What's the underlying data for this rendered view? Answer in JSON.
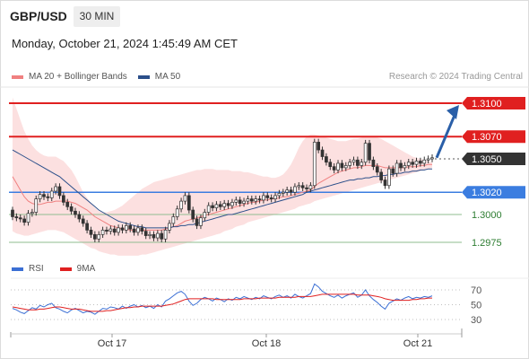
{
  "header": {
    "symbol": "GBP/USD",
    "timeframe": "30 MIN",
    "timestamp": "Monday, October 21, 2024 1:45:49 AM CET",
    "credit": "Research © 2024 Trading Central"
  },
  "legend": {
    "bb_label": "MA 20 + Bollinger Bands",
    "ma50_label": "MA 50",
    "rsi_label": "RSI",
    "ma9_label": "9MA"
  },
  "colors": {
    "bb_line": "#f08080",
    "bb_fill": "#fbd5d5",
    "ma50": "#2b4f8a",
    "resistance": "#e02020",
    "support": "#3b7de0",
    "green_level": "#8fbc8f",
    "last_price": "#333333",
    "arrow": "#2a5fa8",
    "rsi": "#3b6fd4",
    "rsi_ma": "#e02020"
  },
  "chart_data": [
    {
      "type": "candlestick",
      "title": "GBP/USD",
      "x_ticks": [
        "Oct 17",
        "Oct 18",
        "Oct 21"
      ],
      "price_levels": [
        {
          "value": 1.31,
          "label": "1.3100",
          "kind": "resistance"
        },
        {
          "value": 1.307,
          "label": "1.3070",
          "kind": "resistance"
        },
        {
          "value": 1.305,
          "label": "1.3050",
          "kind": "last"
        },
        {
          "value": 1.302,
          "label": "1.3020",
          "kind": "support"
        },
        {
          "value": 1.3,
          "label": "1.3000",
          "kind": "target"
        },
        {
          "value": 1.2975,
          "label": "1.2975",
          "kind": "target"
        }
      ],
      "ylim": [
        1.2958,
        1.3115
      ],
      "forecast_arrow": {
        "from": 1.3051,
        "to": 1.31
      },
      "close": [
        1.2998,
        1.2997,
        1.2996,
        1.2993,
        1.3001,
        1.3002,
        1.3014,
        1.3018,
        1.3016,
        1.3015,
        1.3021,
        1.3025,
        1.3017,
        1.3011,
        1.3007,
        1.3003,
        1.3,
        1.2996,
        1.2992,
        1.2986,
        1.2982,
        1.2978,
        1.2982,
        1.2986,
        1.2985,
        1.2987,
        1.2984,
        1.2988,
        1.2986,
        1.299,
        1.2987,
        1.2984,
        1.2988,
        1.2985,
        1.2981,
        1.2982,
        1.2979,
        1.2983,
        1.2978,
        1.2986,
        1.2992,
        1.2998,
        1.3005,
        1.3012,
        1.3017,
        1.3004,
        1.2996,
        1.299,
        1.2997,
        1.3002,
        1.3008,
        1.3006,
        1.3009,
        1.3007,
        1.301,
        1.3008,
        1.3011,
        1.3013,
        1.301,
        1.3012,
        1.3014,
        1.3012,
        1.3014,
        1.3013,
        1.3017,
        1.3015,
        1.3014,
        1.3017,
        1.3019,
        1.302,
        1.3022,
        1.302,
        1.3025,
        1.3026,
        1.3024,
        1.3023,
        1.3026,
        1.3065,
        1.3058,
        1.3052,
        1.3047,
        1.3043,
        1.304,
        1.3046,
        1.3042,
        1.3044,
        1.3047,
        1.3049,
        1.3044,
        1.3047,
        1.3064,
        1.3049,
        1.3043,
        1.3038,
        1.3031,
        1.3026,
        1.3041,
        1.3037,
        1.3046,
        1.3042,
        1.3044,
        1.3047,
        1.3045,
        1.3048,
        1.3046,
        1.3049,
        1.305,
        1.3051
      ],
      "ma20": [
        1.3034,
        1.3028,
        1.3022,
        1.3016,
        1.3012,
        1.301,
        1.3009,
        1.3009,
        1.301,
        1.3011,
        1.3011,
        1.3012,
        1.3012,
        1.3012,
        1.3012,
        1.3011,
        1.301,
        1.3008,
        1.3006,
        1.3004,
        1.3001,
        1.2998,
        1.2996,
        1.2994,
        1.2992,
        1.299,
        1.2989,
        1.2988,
        1.2987,
        1.2987,
        1.2986,
        1.2986,
        1.2986,
        1.2986,
        1.2986,
        1.2986,
        1.2986,
        1.2986,
        1.2986,
        1.2987,
        1.2988,
        1.2989,
        1.299,
        1.2992,
        1.2994,
        1.2995,
        1.2996,
        1.2997,
        1.2998,
        1.2999,
        1.3,
        1.3001,
        1.3002,
        1.3003,
        1.3004,
        1.3005,
        1.3006,
        1.3007,
        1.3008,
        1.3009,
        1.301,
        1.3011,
        1.3011,
        1.3012,
        1.3013,
        1.3013,
        1.3014,
        1.3014,
        1.3015,
        1.3016,
        1.3016,
        1.3017,
        1.3018,
        1.3019,
        1.302,
        1.3021,
        1.3022,
        1.3025,
        1.3028,
        1.303,
        1.3032,
        1.3034,
        1.3036,
        1.3038,
        1.3039,
        1.304,
        1.3041,
        1.3042,
        1.3042,
        1.3043,
        1.3044,
        1.3044,
        1.3044,
        1.3044,
        1.3043,
        1.3042,
        1.3042,
        1.3042,
        1.3042,
        1.3042,
        1.3042,
        1.3043,
        1.3043,
        1.3043,
        1.3044,
        1.3044,
        1.3045,
        1.3045
      ],
      "ma50": [
        1.3058,
        1.3056,
        1.3054,
        1.3052,
        1.305,
        1.3048,
        1.3046,
        1.3044,
        1.3042,
        1.304,
        1.3038,
        1.3036,
        1.3034,
        1.3031,
        1.3028,
        1.3025,
        1.3022,
        1.3019,
        1.3016,
        1.3013,
        1.301,
        1.3007,
        1.3004,
        1.3002,
        1.3,
        1.2998,
        1.2996,
        1.2994,
        1.2993,
        1.2992,
        1.2991,
        1.299,
        1.2989,
        1.2989,
        1.2988,
        1.2988,
        1.2988,
        1.2988,
        1.2988,
        1.2988,
        1.2988,
        1.2989,
        1.2989,
        1.299,
        1.299,
        1.2991,
        1.2991,
        1.2992,
        1.2993,
        1.2994,
        1.2995,
        1.2996,
        1.2997,
        1.2998,
        1.2999,
        1.3,
        1.3,
        1.3001,
        1.3002,
        1.3003,
        1.3004,
        1.3005,
        1.3006,
        1.3007,
        1.3008,
        1.3009,
        1.301,
        1.3011,
        1.3012,
        1.3013,
        1.3014,
        1.3015,
        1.3016,
        1.3017,
        1.3018,
        1.302,
        1.3021,
        1.3022,
        1.3023,
        1.3024,
        1.3025,
        1.3026,
        1.3027,
        1.3028,
        1.3029,
        1.303,
        1.3031,
        1.3031,
        1.3032,
        1.3032,
        1.3033,
        1.3033,
        1.3034,
        1.3034,
        1.3035,
        1.3035,
        1.3036,
        1.3036,
        1.3037,
        1.3037,
        1.3038,
        1.3038,
        1.3039,
        1.3039,
        1.304,
        1.304,
        1.3041,
        1.3041
      ],
      "bb_upper": [
        1.3105,
        1.3095,
        1.3085,
        1.3075,
        1.3068,
        1.3062,
        1.3058,
        1.3055,
        1.3053,
        1.3052,
        1.3052,
        1.3052,
        1.305,
        1.3048,
        1.3044,
        1.304,
        1.3034,
        1.3027,
        1.302,
        1.3015,
        1.301,
        1.3006,
        1.3003,
        1.3002,
        1.3002,
        1.3003,
        1.3004,
        1.3006,
        1.3008,
        1.3011,
        1.3014,
        1.3017,
        1.302,
        1.3023,
        1.3025,
        1.3027,
        1.3029,
        1.303,
        1.3031,
        1.3032,
        1.3033,
        1.3034,
        1.3035,
        1.3036,
        1.3037,
        1.3038,
        1.3039,
        1.304,
        1.304,
        1.3041,
        1.3041,
        1.3041,
        1.304,
        1.304,
        1.304,
        1.304,
        1.3039,
        1.3039,
        1.3039,
        1.3038,
        1.3038,
        1.3037,
        1.3036,
        1.3035,
        1.3034,
        1.3034,
        1.3033,
        1.3033,
        1.3034,
        1.3036,
        1.304,
        1.3045,
        1.3052,
        1.306,
        1.3066,
        1.307,
        1.3072,
        1.3072,
        1.3071,
        1.307,
        1.3069,
        1.3068,
        1.3067,
        1.3066,
        1.3066,
        1.3066,
        1.3067,
        1.3068,
        1.3068,
        1.3069,
        1.307,
        1.307,
        1.307,
        1.3069,
        1.3068,
        1.3066,
        1.3064,
        1.3062,
        1.306,
        1.3058,
        1.3056,
        1.3054,
        1.3052,
        1.3051,
        1.305,
        1.3049,
        1.3048,
        1.3047
      ],
      "bb_lower": [
        1.2985,
        1.2983,
        1.2982,
        1.2981,
        1.2981,
        1.2982,
        1.2983,
        1.2984,
        1.2985,
        1.2986,
        1.2986,
        1.2986,
        1.2985,
        1.2984,
        1.2982,
        1.298,
        1.2978,
        1.2976,
        1.2974,
        1.2972,
        1.297,
        1.2969,
        1.2967,
        1.2966,
        1.2965,
        1.2964,
        1.2964,
        1.2963,
        1.2963,
        1.2963,
        1.2963,
        1.2963,
        1.2963,
        1.2964,
        1.2964,
        1.2965,
        1.2966,
        1.2967,
        1.2968,
        1.2969,
        1.297,
        1.2971,
        1.2972,
        1.2973,
        1.2974,
        1.2975,
        1.2976,
        1.2977,
        1.2978,
        1.2979,
        1.298,
        1.2981,
        1.2982,
        1.2983,
        1.2985,
        1.2986,
        1.2987,
        1.2989,
        1.299,
        1.2991,
        1.2993,
        1.2994,
        1.2995,
        1.2996,
        1.2997,
        1.2998,
        1.2999,
        1.3,
        1.3001,
        1.3002,
        1.3003,
        1.3004,
        1.3005,
        1.3007,
        1.3008,
        1.3009,
        1.301,
        1.3012,
        1.3013,
        1.3014,
        1.3015,
        1.3016,
        1.3017,
        1.3018,
        1.3019,
        1.302,
        1.3021,
        1.3022,
        1.3023,
        1.3024,
        1.3025,
        1.3026,
        1.3027,
        1.3028,
        1.3029,
        1.303,
        1.3031,
        1.3032,
        1.3033,
        1.3034,
        1.3035,
        1.3036,
        1.3037,
        1.3038,
        1.3039,
        1.304,
        1.3041,
        1.3042
      ]
    },
    {
      "type": "line",
      "title": "RSI",
      "y_ticks": [
        70,
        50,
        30
      ],
      "ylim": [
        15,
        85
      ],
      "series": [
        {
          "name": "RSI",
          "values": [
            45,
            43,
            40,
            38,
            42,
            46,
            44,
            49,
            47,
            50,
            52,
            46,
            44,
            41,
            39,
            43,
            45,
            42,
            39,
            41,
            40,
            37,
            41,
            45,
            44,
            47,
            46,
            44,
            48,
            45,
            48,
            50,
            47,
            49,
            46,
            48,
            45,
            50,
            47,
            55,
            58,
            62,
            66,
            68,
            64,
            55,
            49,
            52,
            57,
            60,
            58,
            55,
            59,
            57,
            54,
            58,
            56,
            60,
            58,
            61,
            59,
            57,
            60,
            58,
            62,
            60,
            58,
            61,
            63,
            60,
            62,
            59,
            64,
            61,
            59,
            62,
            65,
            78,
            74,
            68,
            65,
            62,
            60,
            63,
            59,
            62,
            64,
            66,
            60,
            63,
            70,
            62,
            57,
            53,
            48,
            44,
            52,
            55,
            58,
            56,
            59,
            61,
            58,
            60,
            59,
            61,
            60,
            62
          ]
        },
        {
          "name": "9MA",
          "values": [
            47,
            46,
            45,
            44,
            43,
            43,
            43,
            44,
            44,
            45,
            46,
            47,
            47,
            46,
            45,
            44,
            44,
            44,
            43,
            42,
            41,
            41,
            41,
            41,
            42,
            42,
            43,
            44,
            45,
            46,
            46,
            47,
            47,
            48,
            48,
            48,
            48,
            48,
            48,
            49,
            50,
            51,
            53,
            55,
            57,
            58,
            58,
            58,
            58,
            58,
            58,
            58,
            57,
            57,
            57,
            57,
            57,
            57,
            57,
            58,
            58,
            58,
            58,
            59,
            59,
            59,
            59,
            59,
            60,
            60,
            60,
            60,
            60,
            61,
            61,
            61,
            61,
            62,
            63,
            64,
            64,
            64,
            64,
            64,
            64,
            64,
            64,
            64,
            63,
            63,
            63,
            63,
            62,
            61,
            60,
            58,
            57,
            56,
            56,
            56,
            56,
            56,
            57,
            57,
            58,
            58,
            59,
            59
          ]
        }
      ]
    }
  ]
}
